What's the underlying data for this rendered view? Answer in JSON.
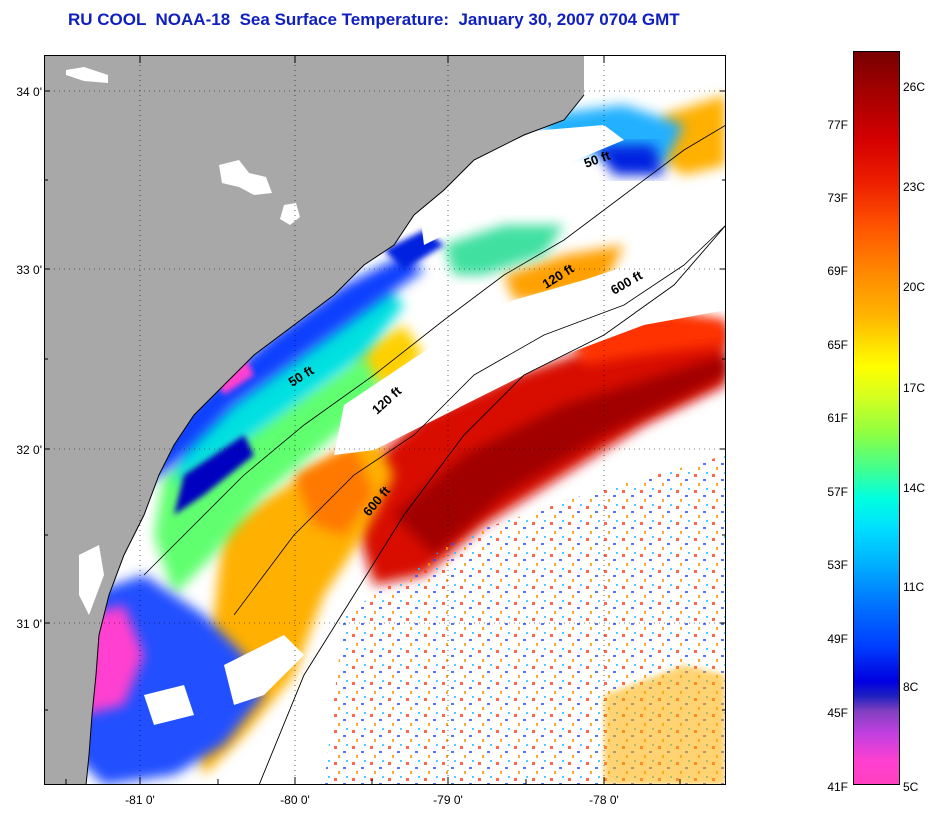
{
  "title": "RU COOL  NOAA-18  Sea Surface Temperature:  January 30, 2007 0704 GMT",
  "y_axis_labels": [
    "34 0'",
    "33 0'",
    "32 0'",
    "31 0'"
  ],
  "x_axis_labels": [
    "-81 0'",
    "-80 0'",
    "-79 0'",
    "-78 0'"
  ],
  "isobath_labels": [
    "50 ft",
    "120 ft",
    "600 ft",
    "50 ft",
    "120 ft",
    "600 ft"
  ],
  "colorbar": {
    "fahrenheit": [
      "77F",
      "73F",
      "69F",
      "65F",
      "61F",
      "57F",
      "53F",
      "49F",
      "45F",
      "41F"
    ],
    "celsius": [
      "26C",
      "23C",
      "20C",
      "17C",
      "14C",
      "11C",
      "8C",
      "5C"
    ]
  },
  "colors": {
    "land": "#a8a8a8",
    "title": "#1020c0",
    "cloud": "#ffffff"
  }
}
